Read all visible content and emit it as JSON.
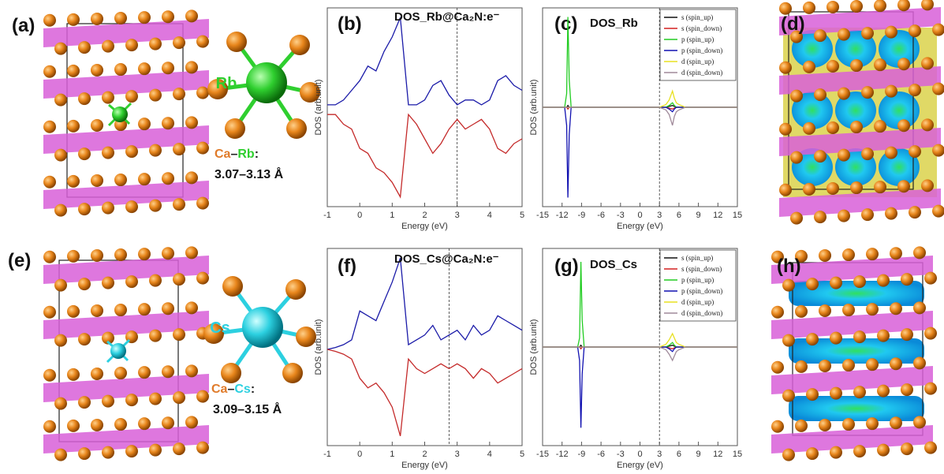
{
  "panel_labels": [
    "(a)",
    "(b)",
    "(c)",
    "(d)",
    "(e)",
    "(f)",
    "(g)",
    "(h)"
  ],
  "structures": [
    {
      "atom": "Rb",
      "bond": [
        "Ca",
        "–",
        "Rb",
        ":"
      ],
      "range": "3.07–3.13 Å"
    },
    {
      "atom": "Cs",
      "bond": [
        "Ca",
        "–",
        "Cs",
        ":"
      ],
      "range": "3.09–3.15 Å"
    }
  ],
  "chart_data": [
    {
      "type": "line",
      "title": "DOS_Rb@Ca₂N:e⁻",
      "x_label": "Energy (eV)",
      "y_label": "DOS (arb.unit)",
      "xlim": [
        -1,
        5
      ],
      "xticks": [
        -1,
        0,
        1,
        2,
        3,
        4,
        5
      ],
      "ylim": [
        -1,
        1.05
      ],
      "vline": 3,
      "x": [
        -1,
        -0.75,
        -0.5,
        -0.25,
        0,
        0.25,
        0.5,
        0.75,
        1,
        1.25,
        1.5,
        1.75,
        2,
        2.25,
        2.5,
        2.75,
        3,
        3.25,
        3.5,
        3.75,
        4,
        4.25,
        4.5,
        4.75,
        5
      ],
      "series": [
        {
          "color": "#1a1aa8",
          "values": [
            0.05,
            0.05,
            0.1,
            0.2,
            0.3,
            0.45,
            0.4,
            0.6,
            0.75,
            0.95,
            0.05,
            0.05,
            0.1,
            0.25,
            0.3,
            0.15,
            0.05,
            0.1,
            0.1,
            0.05,
            0.1,
            0.3,
            0.35,
            0.25,
            0.2
          ]
        },
        {
          "color": "#c42a2a",
          "values": [
            -0.05,
            -0.05,
            -0.15,
            -0.2,
            -0.4,
            -0.45,
            -0.6,
            -0.65,
            -0.75,
            -0.9,
            -0.05,
            -0.15,
            -0.3,
            -0.45,
            -0.35,
            -0.2,
            -0.1,
            -0.2,
            -0.15,
            -0.1,
            -0.2,
            -0.4,
            -0.45,
            -0.35,
            -0.3
          ]
        }
      ]
    },
    {
      "type": "line",
      "title": "DOS_Rb",
      "x_label": "Energy (eV)",
      "y_label": "DOS (arb.unit)",
      "xlim": [
        -15,
        15
      ],
      "xticks": [
        -15,
        -12,
        -9,
        -6,
        -3,
        0,
        3,
        6,
        9,
        12,
        15
      ],
      "ylim": [
        -1.1,
        1.1
      ],
      "vline": 3,
      "legend": "upper right",
      "x": [
        -15,
        -11.6,
        -11.3,
        -11.1,
        -10.9,
        -10.6,
        -10,
        3,
        4,
        4.5,
        5,
        5.3,
        5.6,
        6,
        7,
        15
      ],
      "series": [
        {
          "name": "s (spin_up)",
          "color": "#111111",
          "values": [
            0,
            0,
            0,
            0.02,
            0,
            0,
            0,
            0,
            0,
            0.01,
            0.02,
            0.01,
            0,
            0,
            0,
            0
          ]
        },
        {
          "name": "s (spin_down)",
          "color": "#d42020",
          "values": [
            0,
            0,
            0,
            -0.02,
            0,
            0,
            0,
            0,
            0,
            -0.01,
            -0.02,
            -0.01,
            0,
            0,
            0,
            0
          ]
        },
        {
          "name": "p (spin_up)",
          "color": "#22cc22",
          "values": [
            0,
            0,
            0.15,
            1,
            0.3,
            0,
            0,
            0,
            0,
            0.02,
            0.05,
            0.02,
            0,
            0,
            0,
            0
          ]
        },
        {
          "name": "p (spin_down)",
          "color": "#1010b0",
          "values": [
            0,
            0,
            -0.2,
            -1,
            -0.3,
            0,
            0,
            0,
            0,
            -0.02,
            -0.05,
            -0.02,
            0,
            0,
            0,
            0
          ]
        },
        {
          "name": "d (spin_up)",
          "color": "#e8e020",
          "values": [
            0,
            0,
            0,
            0,
            0,
            0,
            0,
            0,
            0.03,
            0.08,
            0.18,
            0.1,
            0.05,
            0.03,
            0,
            0
          ]
        },
        {
          "name": "d (spin_down)",
          "color": "#a08a9a",
          "values": [
            0,
            0,
            0,
            0,
            0,
            0,
            0,
            0,
            -0.03,
            -0.08,
            -0.2,
            -0.1,
            -0.05,
            -0.03,
            0,
            0
          ]
        }
      ]
    },
    {
      "type": "line",
      "title": "DOS_Cs@Ca₂N:e⁻",
      "x_label": "Energy (eV)",
      "y_label": "DOS (arb.unit)",
      "xlim": [
        -1,
        5
      ],
      "xticks": [
        -1,
        0,
        1,
        2,
        3,
        4,
        5
      ],
      "ylim": [
        -1,
        1.05
      ],
      "vline": 2.75,
      "x": [
        -1,
        -0.75,
        -0.5,
        -0.25,
        0,
        0.25,
        0.5,
        0.75,
        1,
        1.25,
        1.5,
        1.75,
        2,
        2.25,
        2.5,
        2.75,
        3,
        3.25,
        3.5,
        3.75,
        4,
        4.25,
        4.5,
        4.75,
        5
      ],
      "series": [
        {
          "color": "#1a1aa8",
          "values": [
            0,
            0.02,
            0.05,
            0.1,
            0.4,
            0.35,
            0.3,
            0.5,
            0.7,
            0.95,
            0.05,
            0.1,
            0.15,
            0.25,
            0.1,
            0.15,
            0.2,
            0.1,
            0.25,
            0.15,
            0.2,
            0.35,
            0.3,
            0.25,
            0.2
          ]
        },
        {
          "color": "#c42a2a",
          "values": [
            0,
            -0.02,
            -0.05,
            -0.1,
            -0.3,
            -0.4,
            -0.35,
            -0.45,
            -0.6,
            -0.9,
            -0.1,
            -0.2,
            -0.25,
            -0.2,
            -0.15,
            -0.2,
            -0.15,
            -0.2,
            -0.3,
            -0.2,
            -0.25,
            -0.35,
            -0.3,
            -0.25,
            -0.2
          ]
        }
      ]
    },
    {
      "type": "line",
      "title": "DOS_Cs",
      "x_label": "Energy (eV)",
      "y_label": "DOS (arb.unit)",
      "xlim": [
        -15,
        15
      ],
      "xticks": [
        -15,
        -12,
        -9,
        -6,
        -3,
        0,
        3,
        6,
        9,
        12,
        15
      ],
      "ylim": [
        -1.1,
        1.1
      ],
      "vline": 3,
      "legend": "upper right",
      "x": [
        -15,
        -9.6,
        -9.3,
        -9.1,
        -8.9,
        -8.6,
        -8,
        3,
        4,
        4.5,
        5,
        5.3,
        5.6,
        6,
        7,
        15
      ],
      "series": [
        {
          "name": "s (spin_up)",
          "color": "#111111",
          "values": [
            0,
            0,
            0,
            0.02,
            0,
            0,
            0,
            0,
            0,
            0.01,
            0.02,
            0.01,
            0,
            0,
            0,
            0
          ]
        },
        {
          "name": "s (spin_down)",
          "color": "#d42020",
          "values": [
            0,
            0,
            0,
            -0.02,
            0,
            0,
            0,
            0,
            0,
            -0.01,
            -0.02,
            -0.01,
            0,
            0,
            0,
            0
          ]
        },
        {
          "name": "p (spin_up)",
          "color": "#22cc22",
          "values": [
            0,
            0,
            0.1,
            0.95,
            0.3,
            0,
            0,
            0,
            0,
            0.02,
            0.05,
            0.02,
            0,
            0,
            0,
            0
          ]
        },
        {
          "name": "p (spin_down)",
          "color": "#1010b0",
          "values": [
            0,
            0,
            -0.15,
            -0.9,
            -0.3,
            0,
            0,
            0,
            0,
            -0.02,
            -0.05,
            -0.02,
            0,
            0,
            0,
            0
          ]
        },
        {
          "name": "d (spin_up)",
          "color": "#e8e020",
          "values": [
            0,
            0,
            0,
            0,
            0,
            0,
            0,
            0,
            0.03,
            0.08,
            0.15,
            0.1,
            0.05,
            0.03,
            0,
            0
          ]
        },
        {
          "name": "d (spin_down)",
          "color": "#a08a9a",
          "values": [
            0,
            0,
            0,
            0,
            0,
            0,
            0,
            0,
            -0.03,
            -0.08,
            -0.15,
            -0.1,
            -0.05,
            -0.03,
            0,
            0
          ]
        }
      ]
    }
  ]
}
